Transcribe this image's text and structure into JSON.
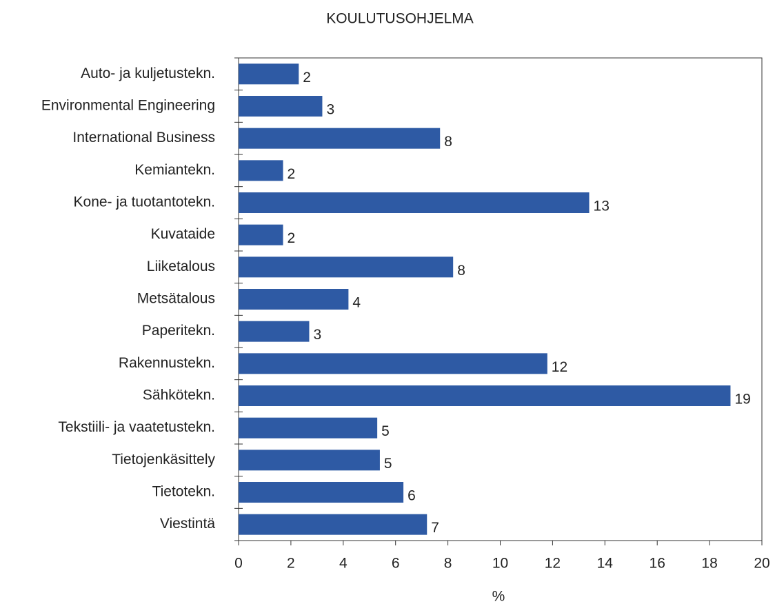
{
  "chart_data": {
    "type": "bar",
    "orientation": "horizontal",
    "title": "KOULUTUSOHJELMA",
    "x_label": "%",
    "categories": [
      "Auto- ja kuljetustekn.",
      "Environmental Engineering",
      "International Business",
      "Kemiantekn.",
      "Kone- ja tuotantotekn.",
      "Kuvataide",
      "Liiketalous",
      "Metsätalous",
      "Paperitekn.",
      "Rakennustekn.",
      "Sähkötekn.",
      "Tekstiili- ja vaatetustekn.",
      "Tietojenkäsittely",
      "Tietotekn.",
      "Viestintä"
    ],
    "values": [
      2.3,
      3.2,
      7.7,
      1.7,
      13.4,
      1.7,
      8.2,
      4.2,
      2.7,
      11.8,
      18.8,
      5.3,
      5.4,
      6.3,
      7.2
    ],
    "value_labels": [
      "2",
      "3",
      "8",
      "2",
      "13",
      "2",
      "8",
      "4",
      "3",
      "12",
      "19",
      "5",
      "5",
      "6",
      "7"
    ],
    "color": "#2e5aa4",
    "xlim": [
      0,
      20
    ],
    "xticks": [
      0,
      2,
      4,
      6,
      8,
      10,
      12,
      14,
      16,
      18,
      20
    ]
  }
}
